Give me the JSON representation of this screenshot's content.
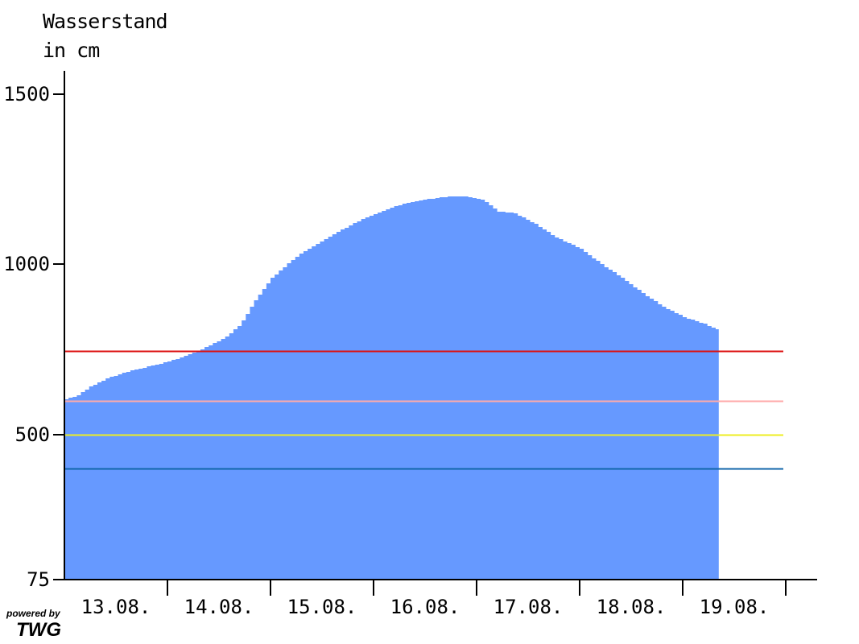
{
  "chart_data": {
    "type": "area",
    "ylabel_line1": "Wasserstand",
    "ylabel_line2": "in cm",
    "ylim": [
      75,
      1560
    ],
    "xlim": [
      0,
      7.0
    ],
    "y_ticks": [
      75,
      500,
      1000,
      1500
    ],
    "y_tick_labels": [
      "75",
      "500",
      "1000",
      "1500"
    ],
    "x_tick_positions": [
      1,
      2,
      3,
      4,
      5,
      6,
      7
    ],
    "x_tick_labels": [
      "13.08.",
      "14.08.",
      "15.08.",
      "16.08.",
      "17.08.",
      "18.08.",
      "19.08."
    ],
    "x_label_positions": [
      0.5,
      1.5,
      2.5,
      3.5,
      4.5,
      5.5,
      6.5
    ],
    "area_color": "#6699ff",
    "series": [
      {
        "x": [
          0.0,
          0.1,
          0.25,
          0.4,
          0.55,
          0.7,
          0.85,
          1.0,
          1.2,
          1.4,
          1.55,
          1.7,
          1.85,
          2.0,
          2.15,
          2.3,
          2.5,
          2.7,
          2.9,
          3.1,
          3.3,
          3.5,
          3.7,
          3.9,
          4.05,
          4.2,
          4.35,
          4.55,
          4.75,
          5.0,
          5.2,
          5.4,
          5.6,
          5.8,
          6.0,
          6.2,
          6.35
        ],
        "y": [
          605,
          612,
          643,
          665,
          680,
          693,
          703,
          715,
          735,
          762,
          785,
          825,
          900,
          960,
          1000,
          1035,
          1070,
          1105,
          1135,
          1160,
          1180,
          1190,
          1198,
          1199,
          1188,
          1155,
          1150,
          1120,
          1080,
          1045,
          1000,
          960,
          915,
          875,
          845,
          825,
          805
        ]
      }
    ],
    "reference_lines": [
      {
        "value": 745,
        "color": "#dd1111"
      },
      {
        "value": 600,
        "color": "#ffaaaa"
      },
      {
        "value": 500,
        "color": "#eeee22"
      },
      {
        "value": 400,
        "color": "#1166aa"
      }
    ]
  },
  "credit": {
    "line1": "powered by",
    "line2": "TWG"
  }
}
